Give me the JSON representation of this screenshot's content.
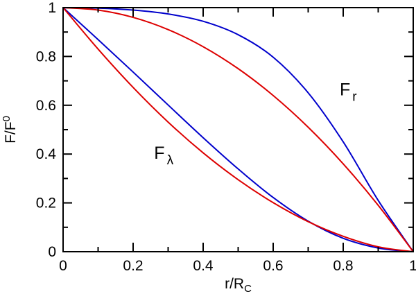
{
  "chart_data": {
    "type": "line",
    "xlabel": {
      "base": "r/R",
      "sub": "C"
    },
    "ylabel": {
      "base": "F/F",
      "sup": "0"
    },
    "xlim": [
      0,
      1
    ],
    "ylim": [
      0,
      1
    ],
    "x_ticks": [
      0,
      0.2,
      0.4,
      0.6,
      0.8,
      1
    ],
    "x_tick_labels": [
      "0",
      "0.2",
      "0.4",
      "0.6",
      "0.8",
      "1"
    ],
    "y_ticks": [
      0,
      0.2,
      0.4,
      0.6,
      0.8,
      1
    ],
    "y_tick_labels": [
      "0",
      "0.2",
      "0.4",
      "0.6",
      "0.8",
      "1"
    ],
    "grid": false,
    "annotations": [
      {
        "base": "F",
        "sub": "r",
        "x": 0.79,
        "y": 0.64
      },
      {
        "base": "F",
        "sub": "λ",
        "x": 0.26,
        "y": 0.38
      }
    ],
    "series": [
      {
        "color": "#0000cc",
        "points": [
          [
            0,
            1
          ],
          [
            0.1,
            0.998
          ],
          [
            0.2,
            0.99
          ],
          [
            0.3,
            0.974
          ],
          [
            0.4,
            0.944
          ],
          [
            0.5,
            0.889
          ],
          [
            0.6,
            0.797
          ],
          [
            0.7,
            0.651
          ],
          [
            0.8,
            0.45
          ],
          [
            0.9,
            0.21
          ],
          [
            1,
            0
          ]
        ]
      },
      {
        "color": "#dd0000",
        "points": [
          [
            0,
            1
          ],
          [
            0.1,
            0.99
          ],
          [
            0.2,
            0.96
          ],
          [
            0.3,
            0.91
          ],
          [
            0.4,
            0.84
          ],
          [
            0.5,
            0.75
          ],
          [
            0.6,
            0.64
          ],
          [
            0.7,
            0.51
          ],
          [
            0.8,
            0.36
          ],
          [
            0.9,
            0.19
          ],
          [
            1,
            0
          ]
        ]
      },
      {
        "color": "#0000cc",
        "points": [
          [
            0,
            1
          ],
          [
            0.1,
            0.869
          ],
          [
            0.2,
            0.736
          ],
          [
            0.3,
            0.601
          ],
          [
            0.4,
            0.467
          ],
          [
            0.5,
            0.339
          ],
          [
            0.6,
            0.222
          ],
          [
            0.7,
            0.125
          ],
          [
            0.8,
            0.055
          ],
          [
            0.9,
            0.015
          ],
          [
            1,
            0
          ]
        ]
      },
      {
        "color": "#dd0000",
        "points": [
          [
            0,
            1
          ],
          [
            0.1,
            0.83
          ],
          [
            0.2,
            0.673
          ],
          [
            0.3,
            0.531
          ],
          [
            0.4,
            0.405
          ],
          [
            0.5,
            0.295
          ],
          [
            0.6,
            0.201
          ],
          [
            0.7,
            0.123
          ],
          [
            0.8,
            0.063
          ],
          [
            0.9,
            0.02
          ],
          [
            1,
            0
          ]
        ]
      }
    ]
  }
}
